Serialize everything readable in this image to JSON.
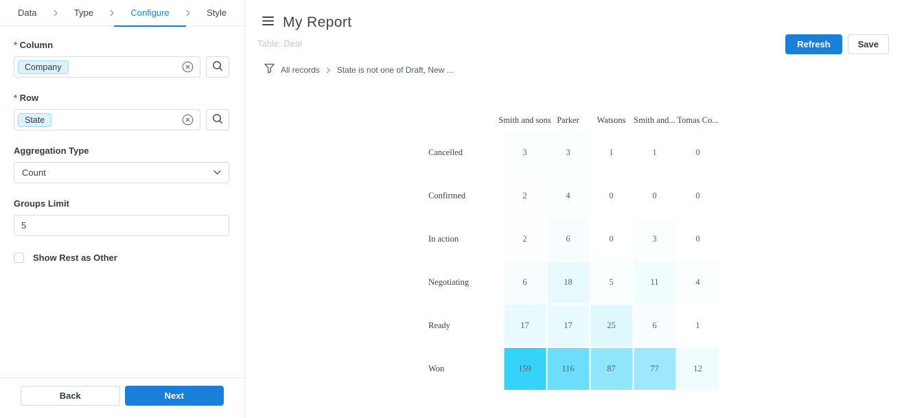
{
  "sidebar": {
    "tabs": [
      {
        "label": "Data",
        "active": false
      },
      {
        "label": "Type",
        "active": false
      },
      {
        "label": "Configure",
        "active": true
      },
      {
        "label": "Style",
        "active": false
      }
    ],
    "column_field": {
      "label": "Column",
      "required": true,
      "tags": [
        "Company"
      ]
    },
    "row_field": {
      "label": "Row",
      "required": true,
      "tags": [
        "State"
      ]
    },
    "aggregation_field": {
      "label": "Aggregation Type",
      "value": "Count"
    },
    "groups_limit_field": {
      "label": "Groups Limit",
      "value": "5"
    },
    "show_rest_checkbox": {
      "label": "Show Rest as Other",
      "checked": false
    },
    "back_label": "Back",
    "next_label": "Next"
  },
  "header": {
    "title": "My Report",
    "table_label": "Table: Deal",
    "refresh_label": "Refresh",
    "save_label": "Save"
  },
  "filter": {
    "scope_label": "All records",
    "condition_label": "State is not one of Draft, New ..."
  },
  "chart_data": {
    "type": "heatmap",
    "title": "",
    "columns": [
      "Smith and sons",
      "Parker",
      "Watsons",
      "Smith and...",
      "Tomas Co..."
    ],
    "rows": [
      "Cancelled",
      "Confirmed",
      "In action",
      "Negotiating",
      "Ready",
      "Won"
    ],
    "values": [
      [
        3,
        3,
        1,
        1,
        0
      ],
      [
        2,
        4,
        0,
        0,
        0
      ],
      [
        2,
        6,
        0,
        3,
        0
      ],
      [
        6,
        18,
        5,
        11,
        4
      ],
      [
        17,
        17,
        25,
        6,
        1
      ],
      [
        159,
        116,
        87,
        77,
        12
      ]
    ],
    "value_range": [
      0,
      159
    ],
    "min_color": "#FFFFFF",
    "max_color": "#35D2F9",
    "legend": "off",
    "grid": "off"
  },
  "colors": {
    "accent_blue": "#1A7FD9",
    "heatmap_max": "#35D2F9",
    "tag_bg": "#DCF2FE",
    "tag_border": "#A5D6F5"
  }
}
